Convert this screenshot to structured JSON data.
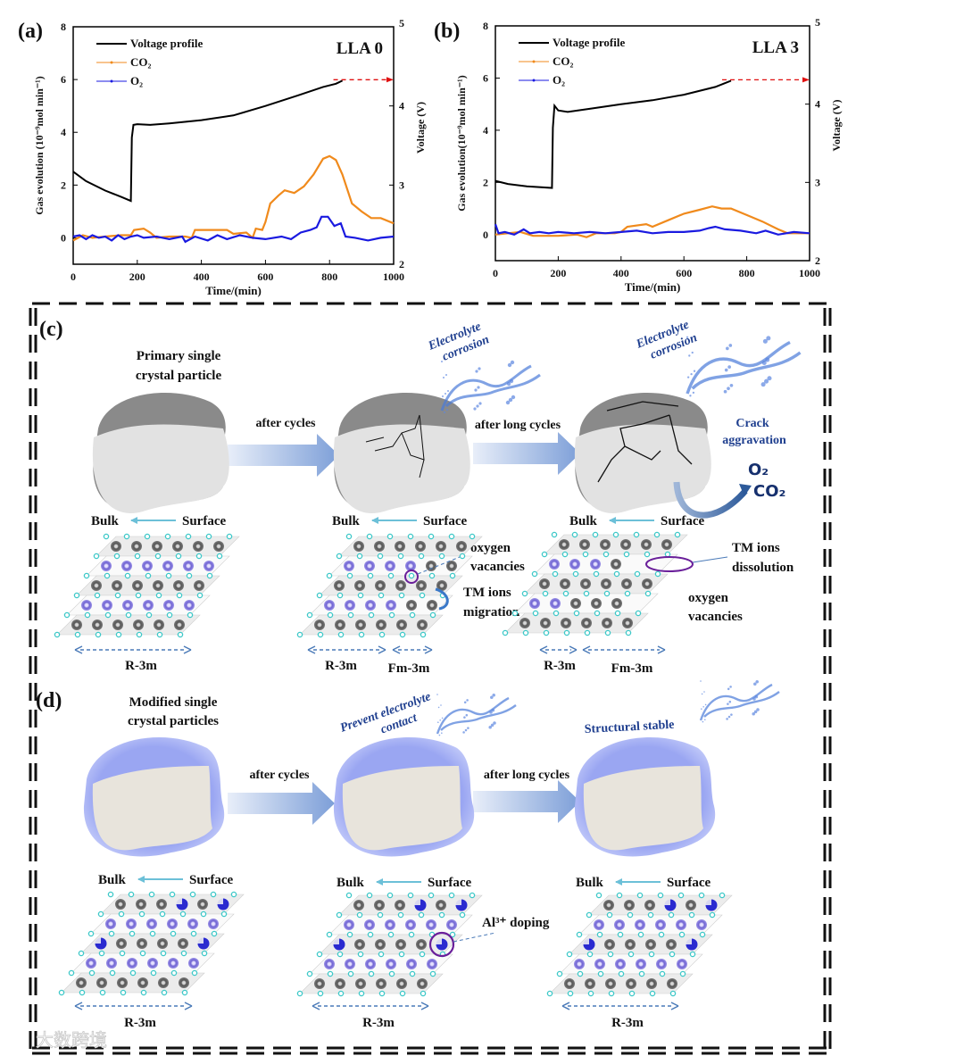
{
  "panels": {
    "a": "(a)",
    "b": "(b)",
    "c": "(c)",
    "d": "(d)"
  },
  "chart_data": [
    {
      "type": "line",
      "sample": "LLA 0",
      "xlabel": "Time/(min)",
      "ylabel": "Gas evolution (10⁻⁹mol min⁻¹)",
      "y2label": "Voltage (V)",
      "xlim": [
        0,
        1000
      ],
      "ylim": [
        -1,
        8
      ],
      "y2lim": [
        2,
        5
      ],
      "xticks": [
        0,
        200,
        400,
        600,
        800,
        1000
      ],
      "yticks": [
        0,
        2,
        4,
        6,
        8
      ],
      "y2ticks": [
        2,
        3,
        4,
        5
      ],
      "legend": [
        "Voltage profile",
        "CO₂",
        "O₂"
      ],
      "legend_position": "top-left",
      "series": [
        {
          "name": "Voltage profile",
          "axis": "right",
          "color": "#000000",
          "points": [
            [
              0,
              3.17
            ],
            [
              40,
              3.05
            ],
            [
              100,
              2.93
            ],
            [
              150,
              2.85
            ],
            [
              180,
              2.8
            ],
            [
              183,
              3.6
            ],
            [
              188,
              3.76
            ],
            [
              200,
              3.77
            ],
            [
              240,
              3.76
            ],
            [
              300,
              3.78
            ],
            [
              400,
              3.82
            ],
            [
              500,
              3.88
            ],
            [
              600,
              4.0
            ],
            [
              700,
              4.13
            ],
            [
              780,
              4.24
            ],
            [
              820,
              4.28
            ],
            [
              840,
              4.32
            ]
          ]
        },
        {
          "name": "CO₂",
          "axis": "left",
          "color": "#f08a1c",
          "points": [
            [
              0,
              -0.1
            ],
            [
              30,
              0.1
            ],
            [
              60,
              0.0
            ],
            [
              100,
              0.05
            ],
            [
              150,
              0.1
            ],
            [
              180,
              0.1
            ],
            [
              190,
              0.3
            ],
            [
              220,
              0.35
            ],
            [
              240,
              0.2
            ],
            [
              260,
              0.0
            ],
            [
              300,
              0.05
            ],
            [
              350,
              0.05
            ],
            [
              370,
              0.0
            ],
            [
              380,
              0.3
            ],
            [
              420,
              0.3
            ],
            [
              480,
              0.3
            ],
            [
              500,
              0.15
            ],
            [
              540,
              0.2
            ],
            [
              560,
              0.0
            ],
            [
              570,
              0.35
            ],
            [
              590,
              0.3
            ],
            [
              600,
              0.6
            ],
            [
              615,
              1.3
            ],
            [
              640,
              1.6
            ],
            [
              660,
              1.8
            ],
            [
              690,
              1.7
            ],
            [
              720,
              1.95
            ],
            [
              750,
              2.4
            ],
            [
              780,
              3.0
            ],
            [
              800,
              3.1
            ],
            [
              820,
              2.95
            ],
            [
              840,
              2.4
            ],
            [
              870,
              1.3
            ],
            [
              900,
              1.0
            ],
            [
              930,
              0.75
            ],
            [
              960,
              0.75
            ],
            [
              1000,
              0.55
            ]
          ]
        },
        {
          "name": "O₂",
          "axis": "left",
          "color": "#1a1ae0",
          "points": [
            [
              0,
              0.05
            ],
            [
              20,
              0.1
            ],
            [
              40,
              -0.05
            ],
            [
              60,
              0.1
            ],
            [
              80,
              0.0
            ],
            [
              100,
              0.05
            ],
            [
              120,
              -0.1
            ],
            [
              140,
              0.1
            ],
            [
              160,
              -0.05
            ],
            [
              180,
              0.05
            ],
            [
              200,
              0.1
            ],
            [
              220,
              0.0
            ],
            [
              260,
              0.05
            ],
            [
              300,
              -0.05
            ],
            [
              340,
              0.05
            ],
            [
              350,
              -0.15
            ],
            [
              380,
              0.05
            ],
            [
              420,
              -0.1
            ],
            [
              450,
              0.1
            ],
            [
              480,
              -0.05
            ],
            [
              520,
              0.1
            ],
            [
              560,
              0.0
            ],
            [
              600,
              -0.05
            ],
            [
              650,
              0.05
            ],
            [
              680,
              -0.05
            ],
            [
              710,
              0.2
            ],
            [
              740,
              0.3
            ],
            [
              760,
              0.4
            ],
            [
              775,
              0.8
            ],
            [
              795,
              0.8
            ],
            [
              815,
              0.45
            ],
            [
              835,
              0.55
            ],
            [
              850,
              0.05
            ],
            [
              880,
              0.0
            ],
            [
              920,
              -0.1
            ],
            [
              960,
              0.0
            ],
            [
              1000,
              0.05
            ]
          ]
        }
      ]
    },
    {
      "type": "line",
      "sample": "LLA 3",
      "xlabel": "Time/(min)",
      "ylabel": "Gas evolution(10⁻⁹mol min⁻¹)",
      "y2label": "Voltage (V)",
      "xlim": [
        0,
        1000
      ],
      "ylim": [
        -1,
        8
      ],
      "y2lim": [
        2,
        5
      ],
      "xticks": [
        0,
        200,
        400,
        600,
        800,
        1000
      ],
      "yticks": [
        0,
        2,
        4,
        6,
        8
      ],
      "y2ticks": [
        2,
        3,
        4,
        5
      ],
      "legend": [
        "Voltage profile",
        "CO₂",
        "O₂"
      ],
      "legend_position": "top-left",
      "series": [
        {
          "name": "Voltage profile",
          "axis": "right",
          "color": "#000000",
          "points": [
            [
              0,
              3.02
            ],
            [
              40,
              2.98
            ],
            [
              100,
              2.95
            ],
            [
              180,
              2.93
            ],
            [
              183,
              3.7
            ],
            [
              188,
              3.98
            ],
            [
              200,
              3.92
            ],
            [
              230,
              3.9
            ],
            [
              300,
              3.94
            ],
            [
              400,
              4.0
            ],
            [
              500,
              4.05
            ],
            [
              600,
              4.12
            ],
            [
              700,
              4.22
            ],
            [
              750,
              4.3
            ]
          ]
        },
        {
          "name": "CO₂",
          "axis": "left",
          "color": "#f08a1c",
          "points": [
            [
              0,
              0.0
            ],
            [
              40,
              0.05
            ],
            [
              80,
              0.1
            ],
            [
              120,
              -0.05
            ],
            [
              200,
              -0.05
            ],
            [
              260,
              0.0
            ],
            [
              290,
              -0.1
            ],
            [
              320,
              0.05
            ],
            [
              380,
              0.05
            ],
            [
              400,
              0.1
            ],
            [
              420,
              0.3
            ],
            [
              480,
              0.4
            ],
            [
              500,
              0.3
            ],
            [
              550,
              0.55
            ],
            [
              600,
              0.8
            ],
            [
              650,
              0.95
            ],
            [
              690,
              1.08
            ],
            [
              720,
              1.0
            ],
            [
              750,
              1.0
            ],
            [
              800,
              0.75
            ],
            [
              850,
              0.5
            ],
            [
              900,
              0.2
            ],
            [
              930,
              0.05
            ],
            [
              1000,
              0.05
            ]
          ]
        },
        {
          "name": "O₂",
          "axis": "left",
          "color": "#1a1ae0",
          "points": [
            [
              0,
              0.4
            ],
            [
              10,
              0.05
            ],
            [
              30,
              0.1
            ],
            [
              60,
              0.0
            ],
            [
              90,
              0.2
            ],
            [
              110,
              0.05
            ],
            [
              140,
              0.1
            ],
            [
              170,
              0.05
            ],
            [
              200,
              0.1
            ],
            [
              250,
              0.05
            ],
            [
              300,
              0.1
            ],
            [
              350,
              0.05
            ],
            [
              400,
              0.1
            ],
            [
              450,
              0.15
            ],
            [
              500,
              0.05
            ],
            [
              550,
              0.1
            ],
            [
              600,
              0.1
            ],
            [
              650,
              0.15
            ],
            [
              680,
              0.25
            ],
            [
              700,
              0.3
            ],
            [
              730,
              0.2
            ],
            [
              780,
              0.15
            ],
            [
              830,
              0.05
            ],
            [
              860,
              0.15
            ],
            [
              900,
              0.0
            ],
            [
              950,
              0.1
            ],
            [
              1000,
              0.05
            ]
          ]
        }
      ]
    }
  ],
  "diagram_c": {
    "stage1_title": [
      "Primary single",
      "crystal particle"
    ],
    "arrow1": "after cycles",
    "arrow2": "after long cycles",
    "corrosion1": [
      "Electrolyte",
      "corrosion"
    ],
    "corrosion2": [
      "Electrolyte",
      "corrosion"
    ],
    "crack": [
      "Crack",
      "aggravation"
    ],
    "gas_o2": "O₂",
    "gas_co2": "CO₂",
    "bulk": "Bulk",
    "surface": "Surface",
    "lattice_rows": [
      [
        "GGGGGG",
        "PPPPPP",
        "GGGGGG",
        "PPPPPP",
        "GGGGGG"
      ],
      [
        "GGGGGG",
        "PPPPGG",
        "GGGGGG",
        "PPPPGG",
        "GGGGGG"
      ],
      [
        "GGGGGG",
        "PPPG",
        "GGGGGG",
        "PPGGG",
        "GGGGGG"
      ]
    ],
    "oxygen_vacancies": [
      "oxygen",
      "vacancies"
    ],
    "tm_migration": [
      "TM ions",
      "migration"
    ],
    "tm_dissolution": [
      "TM ions",
      "dissolution"
    ],
    "oxygen_vacancies2": [
      "oxygen",
      "vacancies"
    ],
    "phase_r": "R-3m",
    "phase_f": "Fm-3m"
  },
  "diagram_d": {
    "stage1_title": [
      "Modified single",
      "crystal particles"
    ],
    "arrow1": "after cycles",
    "arrow2": "after long cycles",
    "prevent": [
      "Prevent electrolyte",
      "contact"
    ],
    "stable": "Structural stable",
    "bulk": "Bulk",
    "surface": "Surface",
    "lattice_rows": [
      "GGGAGA",
      "PPPPPP",
      "AGGGGA",
      "PPPPPP",
      "GGGGGG"
    ],
    "al_doping": "Al³⁺ doping",
    "phase_r": "R-3m"
  },
  "watermark": "大数跨境",
  "colors": {
    "gray_atom": "#6b6b6b",
    "tm_atom": "#7b6fd6",
    "al_atom": "#2a2ad0",
    "oxygen": "#3cc8c8",
    "arrow": "#8fb0e0",
    "shell": "#8e9cf0"
  }
}
